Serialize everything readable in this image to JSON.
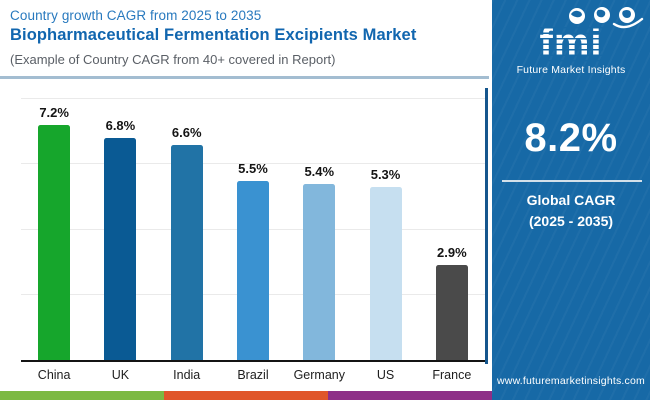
{
  "header": {
    "eyebrow": "Country growth CAGR from 2025 to 2035",
    "title": "Biopharmaceutical Fermentation Excipients Market",
    "subtitle": "(Example of Country CAGR from 40+ covered in Report)"
  },
  "chart_data": {
    "type": "bar",
    "title": "Country growth CAGR from 2025 to 2035",
    "categories": [
      "China",
      "UK",
      "India",
      "Brazil",
      "Germany",
      "US",
      "France"
    ],
    "values": [
      7.2,
      6.8,
      6.6,
      5.5,
      5.4,
      5.3,
      2.9
    ],
    "value_labels": [
      "7.2%",
      "6.8%",
      "6.6%",
      "5.5%",
      "5.4%",
      "5.3%",
      "2.9%"
    ],
    "bar_colors": [
      "#16A62C",
      "#0A5A94",
      "#2173A6",
      "#3A92D1",
      "#82B7DC",
      "#C6DFF0",
      "#4A4A4A"
    ],
    "xlabel": "",
    "ylabel": "",
    "ylim": [
      0,
      8.4
    ],
    "gridline_values": [
      2,
      4,
      6,
      8
    ],
    "grid": "horizontal, light gray",
    "legend": "none"
  },
  "sidebar": {
    "bg_color": "#1769A6",
    "logo": {
      "text": "fmi",
      "tagline": "Future Market Insights"
    },
    "stat_value": "8.2%",
    "stat_label_1": "Global CAGR",
    "stat_label_2": "(2025 - 2035)",
    "website": "www.futuremarketinsights.com"
  },
  "footer": {
    "stripe_colors": [
      "#7CB942",
      "#E0562A",
      "#8E2F87"
    ]
  }
}
